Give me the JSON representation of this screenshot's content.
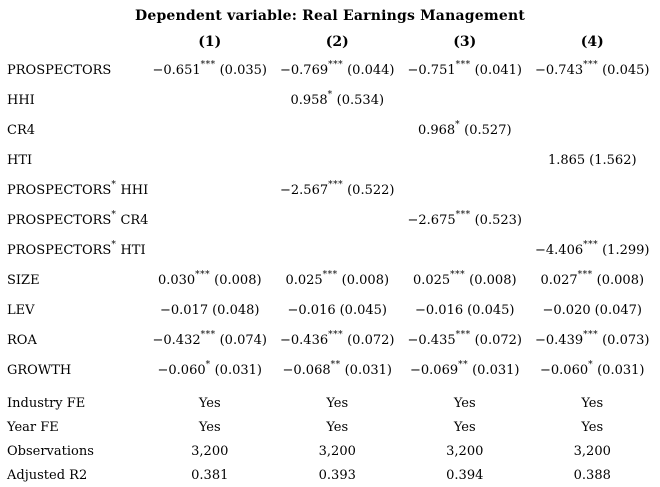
{
  "table": {
    "title": "Dependent variable: Real Earnings Management",
    "col_headers": [
      "(1)",
      "(2)",
      "(3)",
      "(4)"
    ],
    "rows": [
      {
        "label": {
          "text": "PROSPECTORS",
          "sup": "",
          "rest": ""
        },
        "cells": [
          {
            "c": "−0.651",
            "s": "***",
            "e": "(0.035)"
          },
          {
            "c": "−0.769",
            "s": "***",
            "e": "(0.044)"
          },
          {
            "c": "−0.751",
            "s": "***",
            "e": "(0.041)"
          },
          {
            "c": "−0.743",
            "s": "***",
            "e": "(0.045)"
          }
        ]
      },
      {
        "label": {
          "text": "HHI",
          "sup": "",
          "rest": ""
        },
        "cells": [
          {
            "c": "",
            "s": "",
            "e": ""
          },
          {
            "c": "0.958",
            "s": "*",
            "e": "(0.534)"
          },
          {
            "c": "",
            "s": "",
            "e": ""
          },
          {
            "c": "",
            "s": "",
            "e": ""
          }
        ]
      },
      {
        "label": {
          "text": "CR4",
          "sup": "",
          "rest": ""
        },
        "cells": [
          {
            "c": "",
            "s": "",
            "e": ""
          },
          {
            "c": "",
            "s": "",
            "e": ""
          },
          {
            "c": "0.968",
            "s": "*",
            "e": "(0.527)"
          },
          {
            "c": "",
            "s": "",
            "e": ""
          }
        ]
      },
      {
        "label": {
          "text": "HTI",
          "sup": "",
          "rest": ""
        },
        "cells": [
          {
            "c": "",
            "s": "",
            "e": ""
          },
          {
            "c": "",
            "s": "",
            "e": ""
          },
          {
            "c": "",
            "s": "",
            "e": ""
          },
          {
            "c": "1.865",
            "s": "",
            "e": "(1.562)"
          }
        ]
      },
      {
        "label": {
          "text": "PROSPECTORS",
          "sup": "*",
          "rest": " HHI"
        },
        "cells": [
          {
            "c": "",
            "s": "",
            "e": ""
          },
          {
            "c": "−2.567",
            "s": "***",
            "e": "(0.522)"
          },
          {
            "c": "",
            "s": "",
            "e": ""
          },
          {
            "c": "",
            "s": "",
            "e": ""
          }
        ]
      },
      {
        "label": {
          "text": "PROSPECTORS",
          "sup": "*",
          "rest": " CR4"
        },
        "cells": [
          {
            "c": "",
            "s": "",
            "e": ""
          },
          {
            "c": "",
            "s": "",
            "e": ""
          },
          {
            "c": "−2.675",
            "s": "***",
            "e": "(0.523)"
          },
          {
            "c": "",
            "s": "",
            "e": ""
          }
        ]
      },
      {
        "label": {
          "text": "PROSPECTORS",
          "sup": "*",
          "rest": " HTI"
        },
        "cells": [
          {
            "c": "",
            "s": "",
            "e": ""
          },
          {
            "c": "",
            "s": "",
            "e": ""
          },
          {
            "c": "",
            "s": "",
            "e": ""
          },
          {
            "c": "−4.406",
            "s": "***",
            "e": "(1.299)"
          }
        ]
      },
      {
        "label": {
          "text": "SIZE",
          "sup": "",
          "rest": ""
        },
        "cells": [
          {
            "c": "0.030",
            "s": "***",
            "e": "(0.008)"
          },
          {
            "c": "0.025",
            "s": "***",
            "e": "(0.008)"
          },
          {
            "c": "0.025",
            "s": "***",
            "e": "(0.008)"
          },
          {
            "c": "0.027",
            "s": "***",
            "e": "(0.008)"
          }
        ]
      },
      {
        "label": {
          "text": "LEV",
          "sup": "",
          "rest": ""
        },
        "cells": [
          {
            "c": "−0.017",
            "s": "",
            "e": "(0.048)"
          },
          {
            "c": "−0.016",
            "s": "",
            "e": "(0.045)"
          },
          {
            "c": "−0.016",
            "s": "",
            "e": "(0.045)"
          },
          {
            "c": "−0.020",
            "s": "",
            "e": "(0.047)"
          }
        ]
      },
      {
        "label": {
          "text": "ROA",
          "sup": "",
          "rest": ""
        },
        "cells": [
          {
            "c": "−0.432",
            "s": "***",
            "e": "(0.074)"
          },
          {
            "c": "−0.436",
            "s": "***",
            "e": "(0.072)"
          },
          {
            "c": "−0.435",
            "s": "***",
            "e": "(0.072)"
          },
          {
            "c": "−0.439",
            "s": "***",
            "e": "(0.073)"
          }
        ]
      },
      {
        "label": {
          "text": "GROWTH",
          "sup": "",
          "rest": ""
        },
        "cells": [
          {
            "c": "−0.060",
            "s": "*",
            "e": "(0.031)"
          },
          {
            "c": "−0.068",
            "s": "**",
            "e": "(0.031)"
          },
          {
            "c": "−0.069",
            "s": "**",
            "e": "(0.031)"
          },
          {
            "c": "−0.060",
            "s": "*",
            "e": "(0.031)"
          }
        ]
      },
      {
        "label": {
          "text": "Industry FE",
          "sup": "",
          "rest": ""
        },
        "footer": true,
        "cells": [
          {
            "c": "Yes",
            "s": "",
            "e": ""
          },
          {
            "c": "Yes",
            "s": "",
            "e": ""
          },
          {
            "c": "Yes",
            "s": "",
            "e": ""
          },
          {
            "c": "Yes",
            "s": "",
            "e": ""
          }
        ]
      },
      {
        "label": {
          "text": "Year FE",
          "sup": "",
          "rest": ""
        },
        "footer": true,
        "cells": [
          {
            "c": "Yes",
            "s": "",
            "e": ""
          },
          {
            "c": "Yes",
            "s": "",
            "e": ""
          },
          {
            "c": "Yes",
            "s": "",
            "e": ""
          },
          {
            "c": "Yes",
            "s": "",
            "e": ""
          }
        ]
      },
      {
        "label": {
          "text": "Observations",
          "sup": "",
          "rest": ""
        },
        "footer": true,
        "cells": [
          {
            "c": "3,200",
            "s": "",
            "e": ""
          },
          {
            "c": "3,200",
            "s": "",
            "e": ""
          },
          {
            "c": "3,200",
            "s": "",
            "e": ""
          },
          {
            "c": "3,200",
            "s": "",
            "e": ""
          }
        ]
      },
      {
        "label": {
          "text": "Adjusted R2",
          "sup": "",
          "rest": ""
        },
        "footer": true,
        "cells": [
          {
            "c": "0.381",
            "s": "",
            "e": ""
          },
          {
            "c": "0.393",
            "s": "",
            "e": ""
          },
          {
            "c": "0.394",
            "s": "",
            "e": ""
          },
          {
            "c": "0.388",
            "s": "",
            "e": ""
          }
        ]
      }
    ]
  }
}
